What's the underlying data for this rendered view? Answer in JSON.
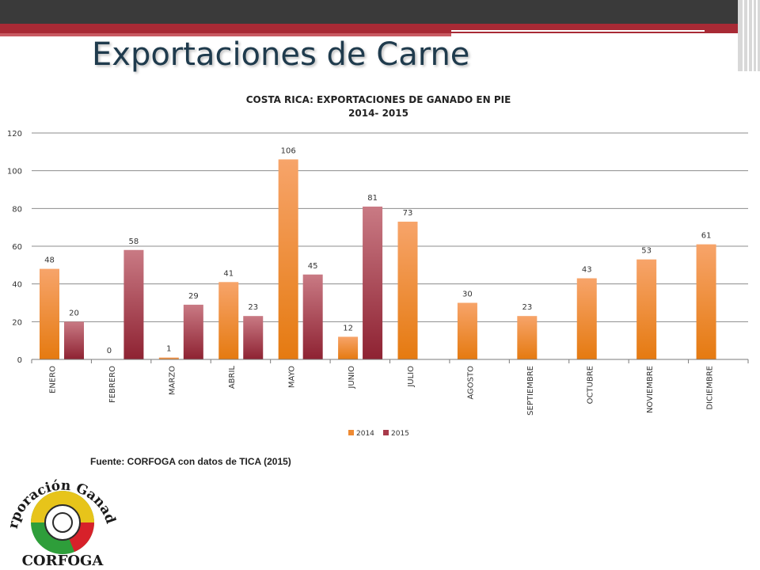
{
  "slide": {
    "title": "Exportaciones de Carne",
    "source": "Fuente: CORFOGA con datos de TICA (2015)"
  },
  "logo": {
    "text_top": "Corporación Ganadera",
    "text_bottom": "CORFOGA"
  },
  "colors": {
    "series_2014": "#ee8a33",
    "series_2015": "#a83a4a",
    "title": "#1f3b4d",
    "top_bar": "#3a3a3a",
    "red_band": "#a82a35"
  },
  "chart_data": {
    "type": "bar",
    "title": "COSTA RICA: EXPORTACIONES DE GANADO EN PIE",
    "subtitle": "2014- 2015",
    "categories": [
      "ENERO",
      "FEBRERO",
      "MARZO",
      "ABRIL",
      "MAYO",
      "JUNIO",
      "JULIO",
      "AGOSTO",
      "SEPTIEMBRE",
      "OCTUBRE",
      "NOVIEMBRE",
      "DICIEMBRE"
    ],
    "series": [
      {
        "name": "2014",
        "values": [
          48,
          0,
          1,
          41,
          106,
          12,
          73,
          30,
          23,
          43,
          53,
          61
        ]
      },
      {
        "name": "2015",
        "values": [
          20,
          58,
          29,
          23,
          45,
          81,
          null,
          null,
          null,
          null,
          null,
          null
        ]
      }
    ],
    "ylim": [
      0,
      120
    ],
    "yticks": [
      0,
      20,
      40,
      60,
      80,
      100,
      120
    ],
    "grid": true,
    "legend_position": "bottom"
  }
}
